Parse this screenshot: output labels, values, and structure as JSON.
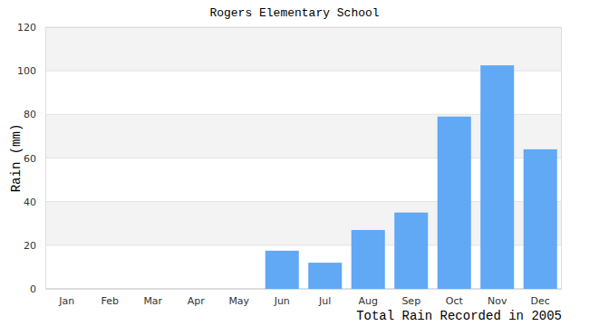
{
  "chart_data": {
    "type": "bar",
    "title": "Rogers Elementary School",
    "y_label": "Rain (mm)",
    "x_label": "Total Rain Recorded in 2005",
    "categories": [
      "Jan",
      "Feb",
      "Mar",
      "Apr",
      "May",
      "Jun",
      "Jul",
      "Aug",
      "Sep",
      "Oct",
      "Nov",
      "Dec"
    ],
    "values": [
      0,
      0,
      0,
      0,
      0,
      17.5,
      12,
      27,
      35,
      79,
      102.5,
      64
    ],
    "color": "#61a8f5",
    "ylim": [
      0,
      120
    ],
    "yticks": [
      0,
      20,
      40,
      60,
      80,
      100,
      120
    ],
    "grid": true
  }
}
